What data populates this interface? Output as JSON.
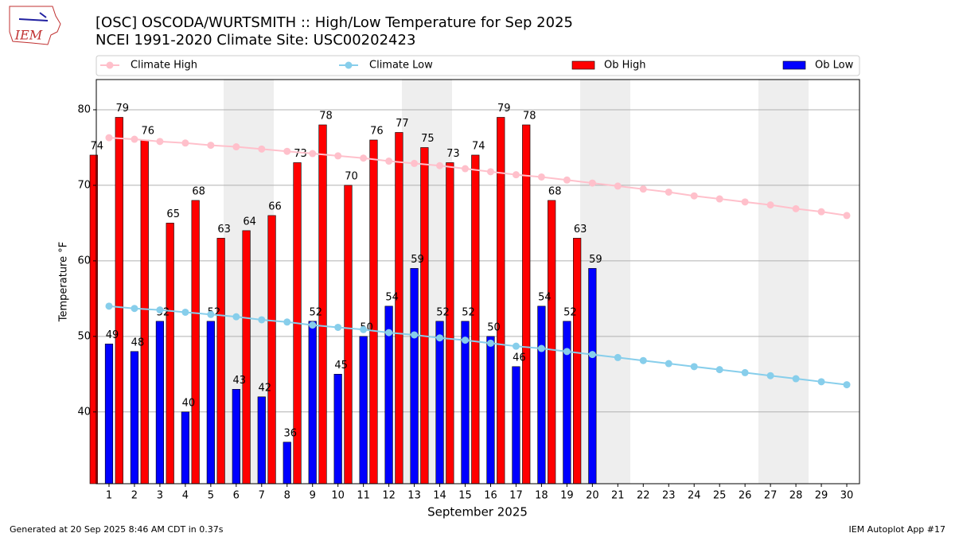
{
  "chart_data": {
    "type": "bar_line",
    "title": "[OSC] OSCODA/WURTSMITH :: High/Low Temperature for Sep 2025",
    "subtitle": "NCEI 1991-2020 Climate Site: USC00202423",
    "logo_text": "IEM",
    "x_label": "September 2025",
    "y_label": "Temperature °F",
    "footer_left": "Generated at 20 Sep 2025 8:46 AM CDT in 0.37s",
    "footer_right": "IEM Autoplot App #17",
    "x": [
      1,
      2,
      3,
      4,
      5,
      6,
      7,
      8,
      9,
      10,
      11,
      12,
      13,
      14,
      15,
      16,
      17,
      18,
      19,
      20,
      21,
      22,
      23,
      24,
      25,
      26,
      27,
      28,
      29,
      30
    ],
    "xlim": [
      0.5,
      30.5
    ],
    "xticks": [
      1,
      2,
      3,
      4,
      5,
      6,
      7,
      8,
      9,
      10,
      11,
      12,
      13,
      14,
      15,
      16,
      17,
      18,
      19,
      20,
      21,
      22,
      23,
      24,
      25,
      26,
      27,
      28,
      29,
      30
    ],
    "ylim": [
      30.5,
      84
    ],
    "yticks": [
      40,
      50,
      60,
      70,
      80
    ],
    "grid": true,
    "legend": "top",
    "series": [
      {
        "name": "Climate High",
        "kind": "line",
        "color": "#ffc0cb",
        "values": [
          76.3,
          76.1,
          75.8,
          75.6,
          75.3,
          75.1,
          74.8,
          74.5,
          74.2,
          73.9,
          73.6,
          73.2,
          72.9,
          72.6,
          72.2,
          71.8,
          71.4,
          71.1,
          70.7,
          70.3,
          69.9,
          69.5,
          69.1,
          68.6,
          68.2,
          67.8,
          67.4,
          66.9,
          66.5,
          66.0
        ]
      },
      {
        "name": "Climate Low",
        "kind": "line",
        "color": "#87ceeb",
        "values": [
          54.0,
          53.7,
          53.5,
          53.2,
          52.9,
          52.6,
          52.2,
          51.9,
          51.5,
          51.2,
          50.9,
          50.5,
          50.2,
          49.8,
          49.5,
          49.1,
          48.7,
          48.4,
          48.0,
          47.6,
          47.2,
          46.8,
          46.4,
          46.0,
          45.6,
          45.2,
          44.8,
          44.4,
          44.0,
          43.6
        ]
      },
      {
        "name": "Ob High",
        "kind": "bar",
        "color": "#ff0000",
        "values": [
          74,
          79,
          76,
          65,
          68,
          63,
          64,
          66,
          73,
          78,
          70,
          76,
          77,
          75,
          73,
          74,
          79,
          78,
          68,
          63,
          null,
          null,
          null,
          null,
          null,
          null,
          null,
          null,
          null,
          null
        ]
      },
      {
        "name": "Ob Low",
        "kind": "bar",
        "color": "#0000ff",
        "values": [
          49,
          48,
          52,
          40,
          52,
          43,
          42,
          36,
          52,
          45,
          50,
          54,
          59,
          52,
          52,
          50,
          46,
          54,
          52,
          59,
          null,
          null,
          null,
          null,
          null,
          null,
          null,
          null,
          null,
          null
        ]
      }
    ]
  }
}
